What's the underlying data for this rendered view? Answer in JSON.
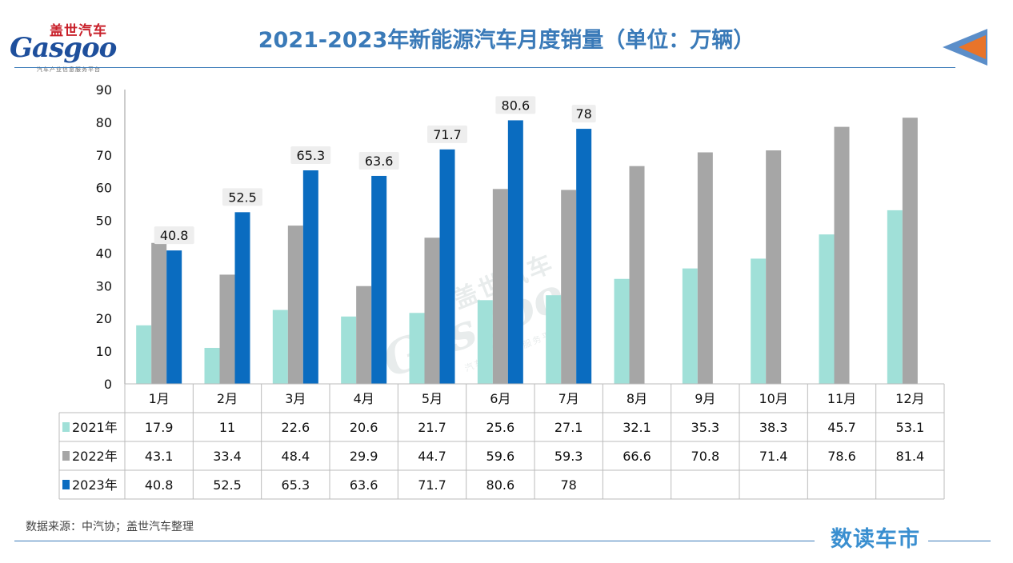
{
  "logo": {
    "name_cn": "盖世汽车",
    "name_en": "Gasgoo",
    "tagline": "汽车产业信息服务平台"
  },
  "watermark": {
    "name_cn": "盖世汽车",
    "name_en": "Gasgoo",
    "tagline": "汽车产业信息服务平台"
  },
  "source_note": "数据来源：中汽协；盖世汽车整理",
  "brand": "数读车市",
  "colors": {
    "title": "#3a7ab8",
    "series_2021": "#a0e0d8",
    "series_2022": "#a6a6a6",
    "series_2023": "#0a6cc0",
    "arrow_orange": "#e8742a",
    "arrow_blue": "#5b8ec9"
  },
  "chart_data": {
    "type": "bar",
    "title": "2021-2023年新能源汽车月度销量（单位：万辆）",
    "categories": [
      "1月",
      "2月",
      "3月",
      "4月",
      "5月",
      "6月",
      "7月",
      "8月",
      "9月",
      "10月",
      "11月",
      "12月"
    ],
    "series": [
      {
        "name": "2021年",
        "color": "#a0e0d8",
        "values": [
          17.9,
          11,
          22.6,
          20.6,
          21.7,
          25.6,
          27.1,
          32.1,
          35.3,
          38.3,
          45.7,
          53.1
        ],
        "labeled": false
      },
      {
        "name": "2022年",
        "color": "#a6a6a6",
        "values": [
          43.1,
          33.4,
          48.4,
          29.9,
          44.7,
          59.6,
          59.3,
          66.6,
          70.8,
          71.4,
          78.6,
          81.4
        ],
        "labeled": false
      },
      {
        "name": "2023年",
        "color": "#0a6cc0",
        "values": [
          40.8,
          52.5,
          65.3,
          63.6,
          71.7,
          80.6,
          78,
          null,
          null,
          null,
          null,
          null
        ],
        "labeled": true
      }
    ],
    "ylim": [
      0,
      90
    ],
    "yticks": [
      0,
      10,
      20,
      30,
      40,
      50,
      60,
      70,
      80,
      90
    ],
    "grid": false,
    "legend": "data-table",
    "xlabel": "",
    "ylabel": ""
  }
}
